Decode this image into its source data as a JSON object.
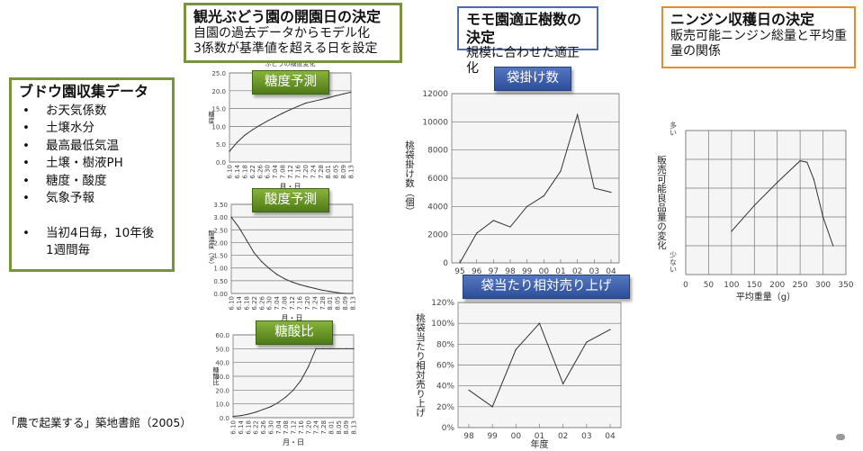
{
  "left_box": {
    "title": "ブドウ園収集データ",
    "items": [
      "お天気係数",
      "土壌水分",
      "最高最低気温",
      "土壌・樹液PH",
      "糖度・酸度",
      "気象予報",
      "当初4日毎，10年後 1週間毎"
    ]
  },
  "grape_box": {
    "title": "観光ぶどう園の開園日の決定",
    "lines": [
      "自園の過去データからモデル化",
      "3係数が基準値を超える日を設定"
    ]
  },
  "peach_box": {
    "title": "モモ園適正樹数の決定",
    "lines": [
      "規模に合わせた適正化"
    ]
  },
  "carrot_box": {
    "title": "ニンジン収穫日の決定",
    "lines": [
      "販売可能ニンジン総量と平均重量の関係"
    ]
  },
  "footnote": "「農で起業する」築地書館（2005）",
  "colors": {
    "green": "#77933c",
    "blue": "#4f6bb0",
    "orange": "#e8892c"
  },
  "chart_data": [
    {
      "type": "line",
      "tag": "糖度予測",
      "title": "ぶどうの糖度変化",
      "xlabel": "月・日",
      "ylabel": "糖度",
      "categories": [
        "6.10",
        "6.14",
        "6.18",
        "6.22",
        "6.26",
        "6.30",
        "7.04",
        "7.08",
        "7.12",
        "7.16",
        "7.20",
        "7.24",
        "7.28",
        "8.01",
        "8.05",
        "8.09",
        "8.13"
      ],
      "values": [
        3,
        5.5,
        7.5,
        9,
        10.3,
        11.5,
        12.6,
        13.7,
        14.7,
        15.6,
        16.5,
        17,
        17.5,
        18,
        18.6,
        19.1,
        19.6
      ],
      "ylim": [
        0,
        25
      ],
      "yticks": [
        "0.0",
        "5.0",
        "10.0",
        "15.0",
        "20.0",
        "25.0"
      ],
      "grid": true
    },
    {
      "type": "line",
      "tag": "酸度予測",
      "xlabel": "月・日",
      "ylabel": "酸濃度（%）",
      "categories": [
        "6.10",
        "6.14",
        "6.18",
        "6.22",
        "6.26",
        "6.30",
        "7.04",
        "7.08",
        "7.12",
        "7.16",
        "7.20",
        "7.24",
        "7.28",
        "8.01",
        "8.05",
        "8.09",
        "8.13"
      ],
      "values": [
        3.0,
        2.6,
        2.1,
        1.6,
        1.25,
        0.98,
        0.75,
        0.58,
        0.45,
        0.35,
        0.27,
        0.2,
        0.13,
        0.08,
        0.03,
        0,
        0
      ],
      "ylim": [
        0,
        3.5
      ],
      "yticks": [
        "0.00",
        "0.50",
        "1.00",
        "1.50",
        "2.00",
        "2.50",
        "3.00",
        "3.50"
      ],
      "grid": true
    },
    {
      "type": "line",
      "tag": "糖酸比",
      "xlabel": "月・日",
      "ylabel": "糖酸比",
      "categories": [
        "6.10",
        "6.14",
        "6.18",
        "6.22",
        "6.26",
        "6.30",
        "7.04",
        "7.08",
        "7.12",
        "7.16",
        "7.20",
        "7.24",
        "7.28",
        "8.01",
        "8.05",
        "8.09",
        "8.13"
      ],
      "values": [
        1,
        1.5,
        2.5,
        4,
        6,
        8,
        11,
        15,
        20,
        27,
        37,
        50,
        50,
        50,
        50,
        50,
        50
      ],
      "ylim": [
        0,
        60
      ],
      "yticks": [
        "0.0",
        "10.0",
        "20.0",
        "30.0",
        "40.0",
        "50.0",
        "60.0"
      ],
      "grid": true
    },
    {
      "type": "line",
      "tag": "袋掛け数",
      "xlabel": "",
      "ylabel": "桃袋掛け数（個）",
      "categories": [
        "95",
        "96",
        "97",
        "98",
        "99",
        "00",
        "01",
        "02",
        "03",
        "04"
      ],
      "values": [
        0,
        2100,
        3000,
        2550,
        4000,
        4750,
        6500,
        10500,
        5300,
        5000
      ],
      "ylim": [
        0,
        12000
      ],
      "yticks": [
        "0",
        "2000",
        "4000",
        "6000",
        "8000",
        "10000",
        "12000"
      ],
      "grid": true
    },
    {
      "type": "line",
      "tag": "袋当たり相対売り上げ",
      "xlabel": "年度",
      "ylabel": "桃袋当たり相対売り上げ",
      "categories": [
        "98",
        "99",
        "00",
        "01",
        "02",
        "03",
        "04"
      ],
      "values": [
        36,
        20,
        75,
        100,
        42,
        82,
        94
      ],
      "ylim": [
        0,
        120
      ],
      "yticks": [
        "0%",
        "20%",
        "40%",
        "60%",
        "80%",
        "100%",
        "120%"
      ],
      "grid": true
    },
    {
      "type": "line",
      "xlabel": "平均重量（g）",
      "ylabel": "販売可能良品量の変化",
      "ytop": "多い",
      "ybottom": "少ない",
      "x": [
        100,
        150,
        200,
        250,
        265,
        280,
        300,
        322
      ],
      "values": [
        1.5,
        2.4,
        3.2,
        3.95,
        3.9,
        3.3,
        2.0,
        1.0
      ],
      "xlim": [
        0,
        350
      ],
      "ylim": [
        0,
        5
      ],
      "xticks": [
        "0",
        "50",
        "100",
        "150",
        "200",
        "250",
        "300",
        "350"
      ],
      "grid": true
    }
  ]
}
